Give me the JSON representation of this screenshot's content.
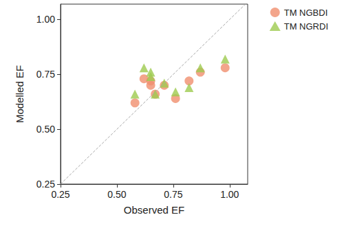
{
  "chart_data": {
    "type": "scatter",
    "x_label": "Observed EF",
    "y_label": "Modelled EF",
    "x": [
      0.58,
      0.62,
      0.65,
      0.65,
      0.67,
      0.71,
      0.76,
      0.82,
      0.87,
      0.98
    ],
    "series": [
      {
        "name": "TM NGBDI",
        "color": "#f08f6e",
        "marker": "circle",
        "values": [
          0.62,
          0.73,
          0.7,
          0.72,
          0.66,
          0.7,
          0.64,
          0.72,
          0.76,
          0.78
        ]
      },
      {
        "name": "TM NGRDI",
        "color": "#9dcb4f",
        "marker": "triangle",
        "values": [
          0.66,
          0.78,
          0.76,
          0.74,
          0.66,
          0.71,
          0.67,
          0.69,
          0.78,
          0.82
        ]
      }
    ],
    "xlim": [
      0.25,
      1.08
    ],
    "ylim": [
      0.25,
      1.07
    ],
    "xticks": [
      {
        "value": 0.25,
        "label": "0.25"
      },
      {
        "value": 0.5,
        "label": "0.50"
      },
      {
        "value": 0.75,
        "label": "0.75"
      },
      {
        "value": 1.0,
        "label": "1.00"
      }
    ],
    "yticks": [
      {
        "value": 0.25,
        "label": "0.25"
      },
      {
        "value": 0.5,
        "label": "0.50"
      },
      {
        "value": 0.75,
        "label": "0.75"
      },
      {
        "value": 1.0,
        "label": "1.00"
      }
    ],
    "grid": false,
    "legend": "right"
  }
}
